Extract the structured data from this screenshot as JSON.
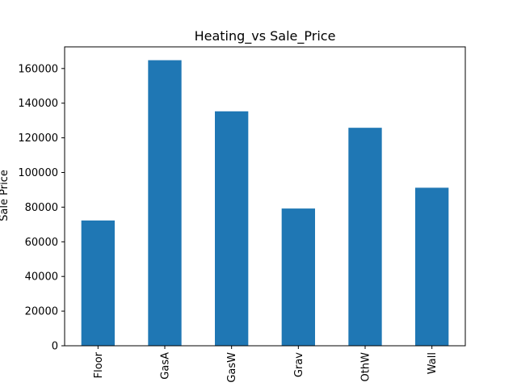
{
  "chart_data": {
    "type": "bar",
    "title": "Heating_vs Sale_Price",
    "xlabel": "",
    "ylabel": "Sale Price",
    "categories": [
      "Floor",
      "GasA",
      "GasW",
      "Grav",
      "OthW",
      "Wall"
    ],
    "values": [
      72300,
      164800,
      135300,
      79200,
      125800,
      91200
    ],
    "ylim": [
      0,
      172500
    ],
    "yticks": [
      0,
      20000,
      40000,
      60000,
      80000,
      100000,
      120000,
      140000,
      160000
    ],
    "bar_color": "#1f77b4",
    "grid": false,
    "legend": "none"
  }
}
